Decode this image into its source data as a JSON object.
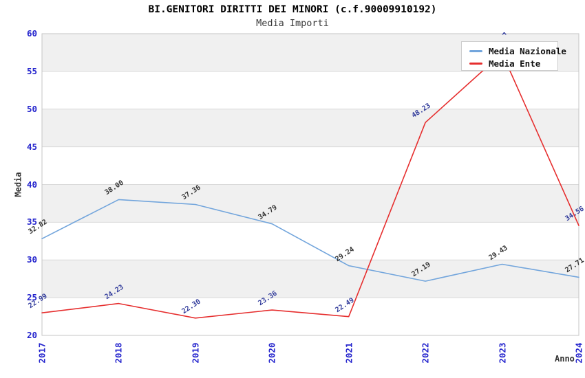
{
  "chart": {
    "title": "BI.GENITORI DIRITTI DEI MINORI (c.f.90009910192)",
    "subtitle": "Media Importi"
  },
  "chart_data": {
    "type": "line",
    "title": "BI.GENITORI DIRITTI DEI MINORI (c.f.90009910192)",
    "subtitle": "Media Importi",
    "xlabel": "Anno",
    "ylabel": "Media",
    "categories": [
      "2017",
      "2018",
      "2019",
      "2020",
      "2021",
      "2022",
      "2023",
      "2024"
    ],
    "series": [
      {
        "name": "Media Nazionale",
        "color": "#72a5dc",
        "label_color": "#333333",
        "values": [
          32.82,
          38.0,
          37.36,
          34.79,
          29.24,
          27.19,
          29.43,
          27.71
        ],
        "labels": [
          "32.82",
          "38.00",
          "37.36",
          "34.79",
          "29.24",
          "27.19",
          "29.43",
          "27.71"
        ]
      },
      {
        "name": "Media Ente",
        "color": "#e62e2e",
        "label_color": "#333d9c",
        "values": [
          22.99,
          24.23,
          22.3,
          23.36,
          22.49,
          48.23,
          57.4,
          34.56
        ],
        "labels": [
          "22.99",
          "24.23",
          "22.30",
          "23.36",
          "22.49",
          "48.23",
          null,
          "34.56"
        ]
      }
    ],
    "ylim": [
      20,
      60
    ],
    "ytick_step": 5,
    "yticks": [
      "20",
      "25",
      "30",
      "35",
      "40",
      "45",
      "50",
      "55",
      "60"
    ],
    "legend_position": "top-right",
    "legend_entries": [
      "Media Nazionale",
      "Media Ente"
    ],
    "grid": "horizontal gridlines every 5 units with alternating shaded bands",
    "band_color": "#f0f0f0",
    "gridline_color": "#d8d8d8",
    "plot_border_color": "#c4c4c4",
    "axis_tick_color": "#2424cd",
    "hidden_label_marker": "^"
  }
}
